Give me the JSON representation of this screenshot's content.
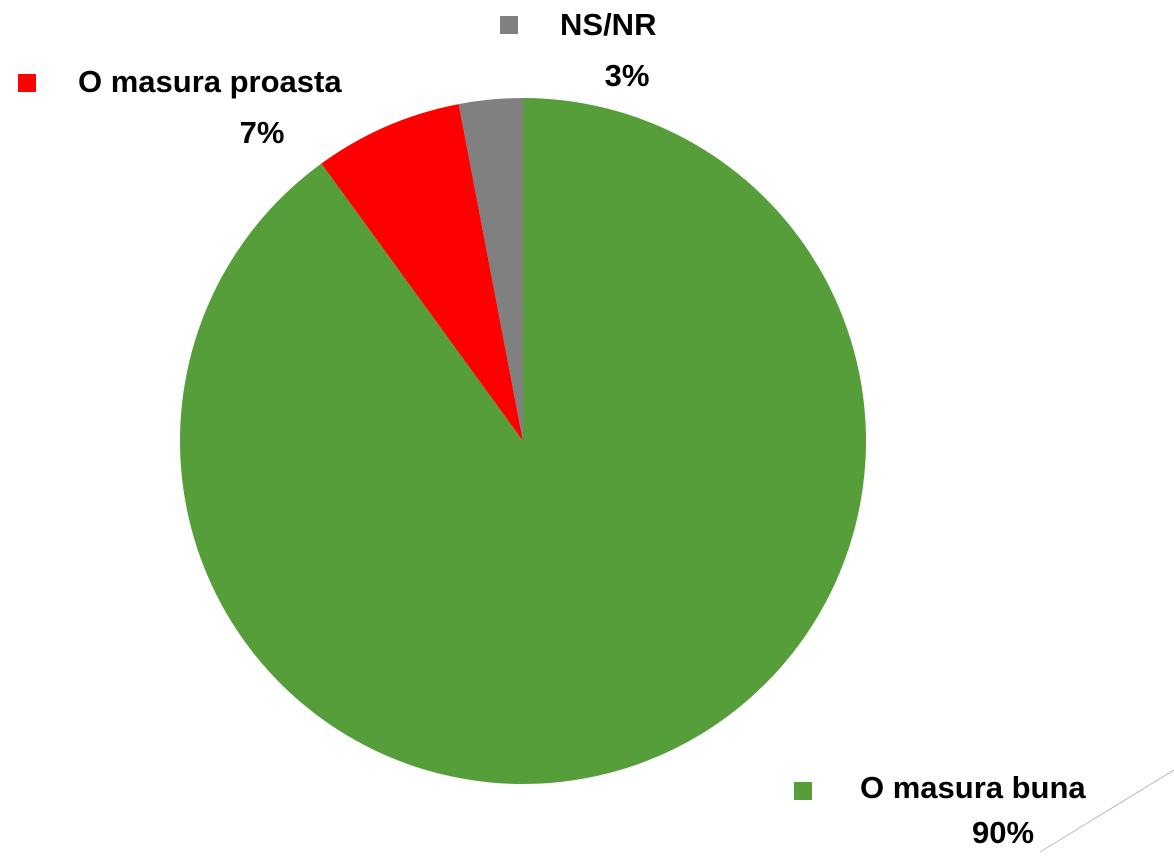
{
  "chart_data": {
    "type": "pie",
    "categories": [
      "O masura buna",
      "O masura proasta",
      "NS/NR"
    ],
    "values": [
      90,
      7,
      3
    ],
    "value_labels": [
      "90%",
      "7%",
      "3%"
    ],
    "colors": [
      "#559e3a",
      "#ff0000",
      "#808080"
    ]
  }
}
